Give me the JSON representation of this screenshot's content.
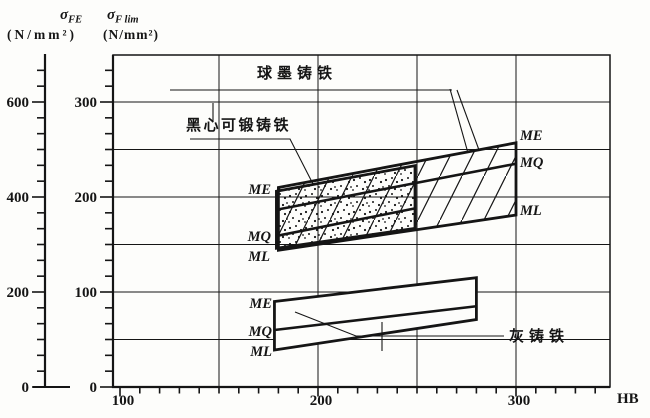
{
  "figure": {
    "ink": "#151515",
    "background": "#fdfdfb",
    "axis_fe": {
      "symbol": "σ",
      "sub": "FE",
      "unit": "(N/mm²)"
    },
    "axis_flim": {
      "symbol": "σ",
      "sub": "F lim",
      "unit": "(N/mm²)"
    },
    "axis_hb": {
      "label": "HB"
    },
    "materials": {
      "nodular": {
        "label": "球墨铸铁",
        "grades": [
          "ME",
          "MQ",
          "ML"
        ]
      },
      "malleable": {
        "label": "黑心可锻铸铁",
        "grades": [
          "ME",
          "MQ",
          "ML"
        ]
      },
      "grey": {
        "label": "灰铸铁",
        "grades": [
          "ME",
          "MQ",
          "ML"
        ]
      }
    }
  },
  "chart_data": {
    "type": "area",
    "xlabel": "HB",
    "ylabel_left_axis": "σFE (N/mm²)",
    "ylabel_main_axis": "σF lim (N/mm²)",
    "note": "σFE scale is exactly 2 × σF lim scale",
    "x_range": [
      100,
      347
    ],
    "y_range_sigma_Flim": [
      0,
      350
    ],
    "x_ticks": [
      100,
      200,
      300
    ],
    "y_ticks_sigma_FE": [
      0,
      200,
      400,
      600
    ],
    "y_ticks_sigma_Flim": [
      0,
      100,
      200,
      300
    ],
    "x_gridlines": [
      150,
      200,
      250,
      300
    ],
    "y_gridlines": [
      50,
      100,
      150,
      200,
      250,
      300
    ],
    "grid": true,
    "bands": [
      {
        "material": "球墨铸铁",
        "fill": "hatch",
        "HB": [
          180,
          300
        ],
        "sigma_Flim": {
          "ME": [
            210,
            257
          ],
          "MQ": [
            187,
            235
          ],
          "ML": [
            144,
            181
          ]
        }
      },
      {
        "material": "黑心可锻铸铁",
        "fill": "stipple",
        "HB": [
          179,
          249
        ],
        "sigma_Flim": {
          "ME": [
            206,
            233
          ],
          "MQ": [
            159,
            188
          ],
          "ML": [
            146,
            167
          ]
        }
      },
      {
        "material": "灰铸铁",
        "fill": "white",
        "HB": [
          178,
          280
        ],
        "sigma_Flim": {
          "ME": [
            90,
            115
          ],
          "MQ": [
            60,
            85
          ],
          "ML": [
            39,
            71
          ]
        }
      }
    ]
  }
}
